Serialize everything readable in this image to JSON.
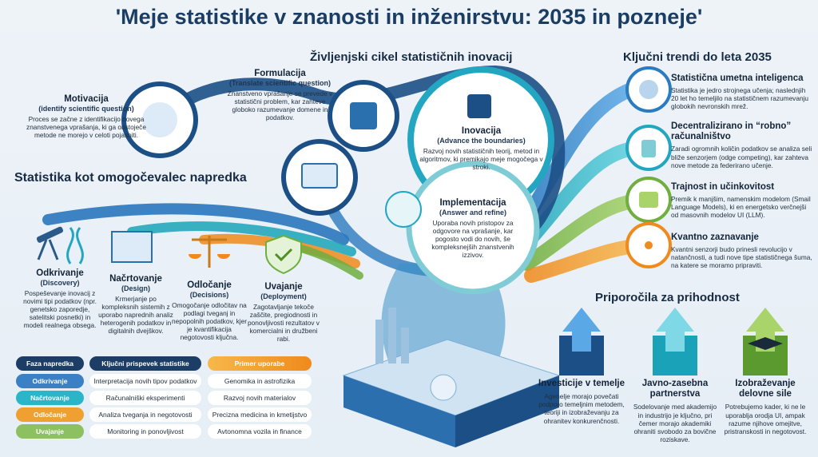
{
  "title": "'Meje statistike v znanosti in inženirstvu: 2035 in pozneje'",
  "lifecycle": {
    "heading": "Življenjski cikel statističnih inovacij",
    "stages": [
      {
        "name": "Motivacija",
        "subtitle": "(identify scientific question)",
        "text": "Proces se začne z identifikacijo novega znanstvenega vprašanja, ki ga obstoječe metode ne morejo v celoti pojasniti."
      },
      {
        "name": "Formulacija",
        "subtitle": "(Translate scientific question)",
        "text": "Znanstveno vprašanje se prevede v statistični problem, kar zahteve globoko razumevanje domene in podatkov."
      },
      {
        "name": "Inovacija",
        "subtitle": "(Advance the boundaries)",
        "text": "Razvoj novih statističnih teorij, metod in algoritmov, ki premikajo meje mogočega v stroki."
      },
      {
        "name": "Implementacija",
        "subtitle": "(Answer and refine)",
        "text": "Uporaba novih pristopov za odgovore na vprašanje, kar pogosto vodi do novih, še kompleksnejših znanstvenih izzivov."
      }
    ]
  },
  "enablers": {
    "heading": "Statistika kot omogočevalec napredka",
    "phases": [
      {
        "name": "Odkrivanje",
        "subtitle": "(Discovery)",
        "text": "Pospeševanje inovacij z novimi tipi podatkov (npr. genetsko zaporedje, satelitski posnetki) in modeli realnega obsega."
      },
      {
        "name": "Načrtovanje",
        "subtitle": "(Design)",
        "text": "Krmerjanje po kompleksnih sistemih z uporabo naprednih analiz heterogenih podatkov in digitalnih dvejškov."
      },
      {
        "name": "Odločanje",
        "subtitle": "(Decisions)",
        "text": "Omogočanje odločitav na podlagi tveganj in nepopolnih podatkov, kjer je kvantifikacija negotovosti ključna."
      },
      {
        "name": "Uvajanje",
        "subtitle": "(Deployment)",
        "text": "Zagotavljanje tekoče zaščite, pregiodnosti in ponovljivosti rezultatov v komercialni in družbeni rabi."
      }
    ]
  },
  "table": {
    "header": [
      "Faza napredka",
      "Ključni prispevek statistike",
      "Primer uporabe"
    ],
    "rows": [
      [
        "Odkrivanje",
        "Interpretacija novih tipov podatkov",
        "Genomika in astrofizika"
      ],
      [
        "Načrtovanje",
        "Računalniški eksperimenti",
        "Razvoj novih materialov"
      ],
      [
        "Odločanje",
        "Analiza tveganja in negotovosti",
        "Precizna medicina in kmetijstvo"
      ],
      [
        "Uvajanje",
        "Monitoring in ponovljivost",
        "Avtonomna vozila in finance"
      ]
    ]
  },
  "trends": {
    "heading": "Ključni trendi do leta 2035",
    "items": [
      {
        "name": "Statistična umetna inteligenca",
        "text": "Statistika je jedro strojnega učenja; naslednjih 20 let ho temeljilo na statističnem razumevanju globokih nevronskih mrež."
      },
      {
        "name": "Decentralizirano in “robno” računalništvo",
        "text": "Zaradi ogromnih količin podatkov se analiza seli bliže senzorjem (odge competing), kar zahteva nove metode za federirano učenje."
      },
      {
        "name": "Trajnost in učinkovitost",
        "text": "Premik k manjšim, namenskim modelom (Smail Language Models), ki en energetsko verčnejši od masovnih modelov UI (LLM)."
      },
      {
        "name": "Kvantno zaznavanje",
        "text": "Kvantni senzorji budo prinesli revolucijo v natančnosti, a tudi nove tipe statističnega šuma, na katere se moramo pripraviti."
      }
    ]
  },
  "recommendations": {
    "heading": "Priporočila za prihodnost",
    "items": [
      {
        "name": "Investicije v temelje",
        "text": "Agenelje morajo povečati podporo temeljnim metodem, teoriji in izobraževanju za ohranitev konkurenčnosti."
      },
      {
        "name": "Javno-zasebna partnerstva",
        "text": "Sodelovanje med akademijo in industrijo je ključno, pri čemer morajo akademiki ohraniti svobodo za bovične roziskave."
      },
      {
        "name": "Izobraževanje delovne sile",
        "text": "Potrebujemo kader, ki ne le uporablja orodja UI, ampak razume njihove omejitve, pristranskosti in negotovost."
      }
    ]
  }
}
